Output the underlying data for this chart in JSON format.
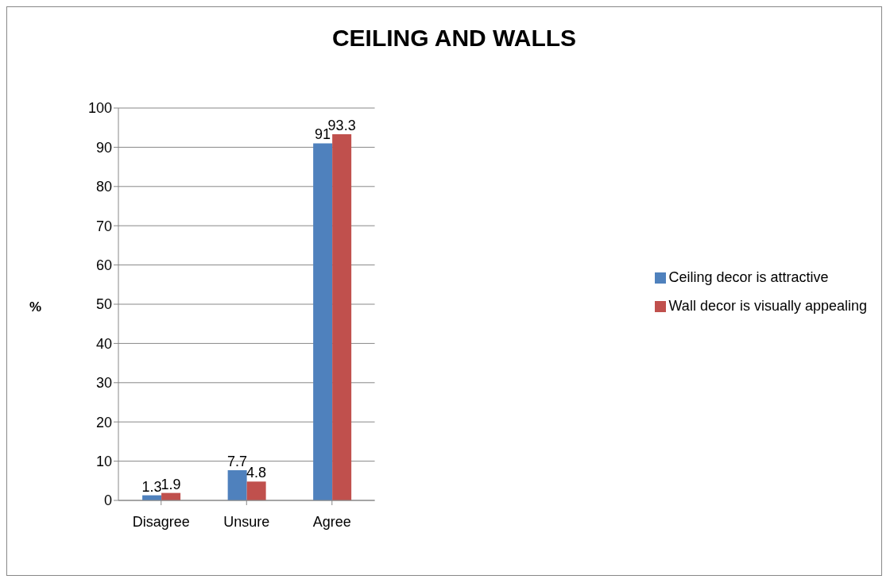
{
  "chart_data": {
    "type": "bar",
    "title": "CEILING AND WALLS",
    "ylabel": "%",
    "categories": [
      "Disagree",
      "Unsure",
      "Agree"
    ],
    "series": [
      {
        "name": "Ceiling decor is attractive",
        "color": "#4f81bd",
        "values": [
          1.3,
          7.7,
          91
        ]
      },
      {
        "name": "Wall decor is visually appealing",
        "color": "#c0504d",
        "values": [
          1.9,
          4.8,
          93.3
        ]
      }
    ],
    "ylim": [
      0,
      100
    ],
    "yticks": [
      0,
      10,
      20,
      30,
      40,
      50,
      60,
      70,
      80,
      90,
      100
    ],
    "grid": "y",
    "legend": "right",
    "data_labels": true
  }
}
